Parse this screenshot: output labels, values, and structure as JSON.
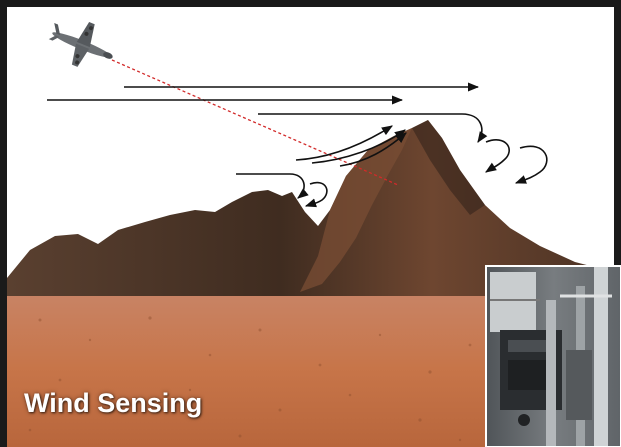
{
  "caption": "Wind Sensing",
  "colors": {
    "frame": "#1a1a1a",
    "sky": "#ffffff",
    "mountain": "#4a3426",
    "mountain_lit": "#7a4e34",
    "desert": "#c97a52",
    "arrow": "#111111",
    "laser_beam": "#d22a2a",
    "equipment": "#8a8f93"
  },
  "icons": {
    "aircraft": "airplane-icon",
    "instrument": "lidar-equipment-photo"
  }
}
